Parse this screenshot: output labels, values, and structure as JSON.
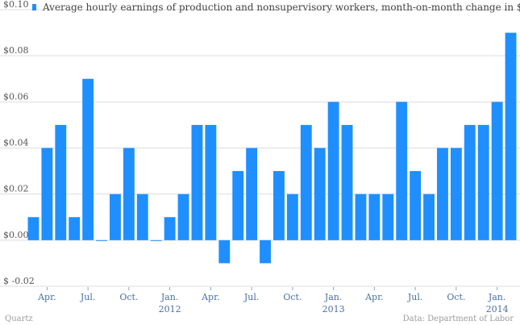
{
  "legend": {
    "label": "Average hourly earnings of production and nonsupervisory workers, month-on-month change in $",
    "color": "#1f8fff"
  },
  "footer": {
    "left": "Quartz",
    "right": "Data: Department of Labor"
  },
  "chart_data": {
    "type": "bar",
    "title": "",
    "xlabel": "",
    "ylabel": "",
    "ylim": [
      -0.02,
      0.1
    ],
    "yticks": [
      "$ -0.02",
      "$0.00",
      "$0.02",
      "$0.04",
      "$0.06",
      "$0.08",
      "$0.10"
    ],
    "ytick_values": [
      -0.02,
      0.0,
      0.02,
      0.04,
      0.06,
      0.08,
      0.1
    ],
    "grid": true,
    "legend_position": "top-left",
    "bar_color": "#1f8fff",
    "xtick_labels": [
      {
        "index": 1,
        "label": "Apr."
      },
      {
        "index": 4,
        "label": "Jul."
      },
      {
        "index": 7,
        "label": "Oct."
      },
      {
        "index": 10,
        "label": "Jan."
      },
      {
        "index": 13,
        "label": "Apr."
      },
      {
        "index": 16,
        "label": "Jul."
      },
      {
        "index": 19,
        "label": "Oct."
      },
      {
        "index": 22,
        "label": "Jan."
      },
      {
        "index": 25,
        "label": "Apr."
      },
      {
        "index": 28,
        "label": "Jul."
      },
      {
        "index": 31,
        "label": "Oct."
      },
      {
        "index": 34,
        "label": "Jan."
      }
    ],
    "year_labels": [
      {
        "index": 10,
        "label": "2012"
      },
      {
        "index": 22,
        "label": "2013"
      },
      {
        "index": 34,
        "label": "2014"
      }
    ],
    "values": [
      0.01,
      0.04,
      0.05,
      0.01,
      0.07,
      0.0,
      0.02,
      0.04,
      0.02,
      0.0,
      0.01,
      0.02,
      0.05,
      0.05,
      -0.01,
      0.03,
      0.04,
      -0.01,
      0.03,
      0.02,
      0.05,
      0.04,
      0.06,
      0.05,
      0.02,
      0.02,
      0.02,
      0.06,
      0.03,
      0.02,
      0.04,
      0.04,
      0.05,
      0.05,
      0.06,
      0.09
    ]
  }
}
